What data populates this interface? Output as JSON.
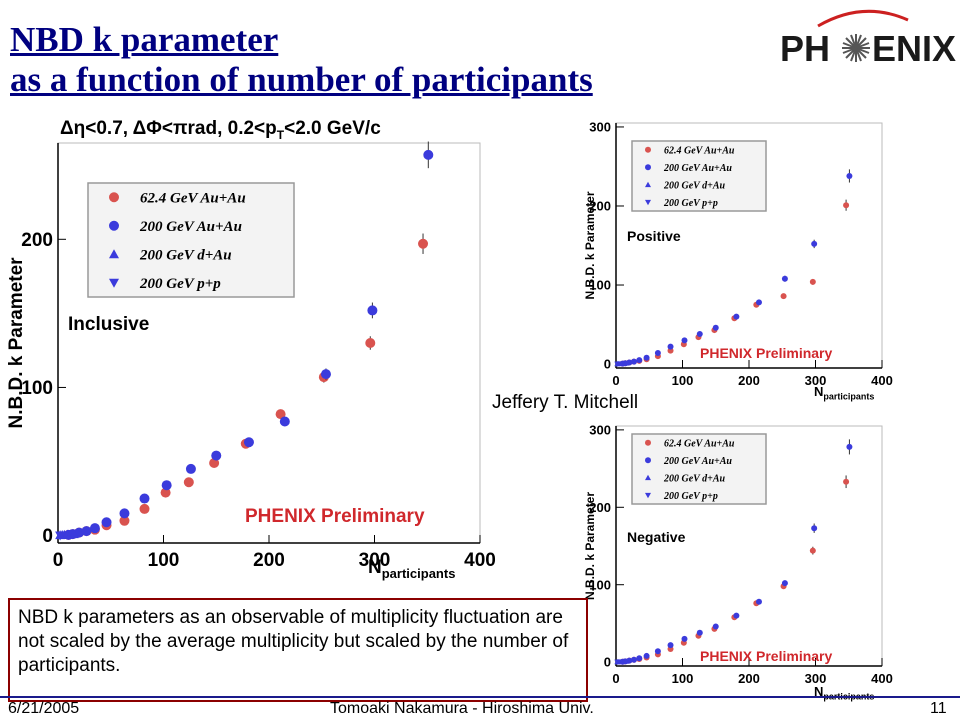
{
  "slide": {
    "title_line1": "NBD k parameter",
    "title_line2": "as a function of number of participants",
    "cuts": {
      "prefix": "Δη<0.7, ΔΦ<πrad, 0.2<p",
      "sub": "T",
      "suffix": "<2.0 GeV/c"
    },
    "logo_text_left": "PH",
    "logo_text_right": "ENIX",
    "author": "Jeffery T. Mitchell",
    "note": "NBD k parameters as an observable of multiplicity fluctuation are not scaled by the average multiplicity but scaled by the number of participants.",
    "footer": {
      "date": "6/21/2005",
      "presenter": "Tomoaki Nakamura - Hiroshima Univ.",
      "page": "11"
    }
  },
  "panels": {
    "main": {
      "label": "Inclusive",
      "prelim": "PHENIX Preliminary",
      "xlabel": "N",
      "xlabel_sub": "participants"
    },
    "positive": {
      "label": "Positive",
      "prelim": "PHENIX Preliminary",
      "xlabel": "N",
      "xlabel_sub": "participants"
    },
    "negative": {
      "label": "Negative",
      "prelim": "PHENIX Preliminary",
      "xlabel": "N",
      "xlabel_sub": "participants"
    }
  },
  "colors": {
    "title": "#000080",
    "auau624": "#d9534f",
    "auau200": "#3b3bdc",
    "prelim": "#d0282c",
    "border": "#8b0000"
  },
  "chart_data": [
    {
      "type": "scatter",
      "panel": "Inclusive",
      "xlabel": "N participants",
      "ylabel": "N.B.D. k Parameter",
      "xlim": [
        0,
        400
      ],
      "ylim": [
        -5,
        265
      ],
      "xticks": [
        "0",
        "100",
        "200",
        "300",
        "400"
      ],
      "yticks": [
        "0",
        "100",
        "200"
      ],
      "legend": [
        "62.4 GeV Au+Au",
        "200 GeV Au+Au",
        "200 GeV d+Au",
        "200 GeV p+p"
      ],
      "series": [
        {
          "name": "62.4 GeV Au+Au",
          "marker": "circle",
          "color": "#d9534f",
          "x": [
            10,
            14,
            20,
            27,
            35,
            46,
            63,
            82,
            102,
            124,
            148,
            178,
            211,
            252,
            296,
            346
          ],
          "y": [
            0.5,
            1,
            2,
            3,
            4,
            7,
            10,
            18,
            29,
            36,
            49,
            62,
            82,
            107,
            130,
            197
          ]
        },
        {
          "name": "200 GeV Au+Au",
          "marker": "circle",
          "color": "#3b3bdc",
          "x": [
            10,
            14,
            20,
            27,
            35,
            46,
            63,
            82,
            103,
            126,
            150,
            181,
            215,
            254,
            298,
            351
          ],
          "y": [
            0.5,
            1,
            2,
            3,
            5,
            9,
            15,
            25,
            34,
            45,
            54,
            63,
            77,
            109,
            152,
            257
          ]
        },
        {
          "name": "200 GeV d+Au",
          "marker": "triangle",
          "color": "#3b3bdc",
          "x": [
            2,
            4,
            6,
            9,
            12,
            15
          ],
          "y": [
            0.3,
            0.4,
            0.5,
            0.7,
            0.9,
            1.0
          ]
        },
        {
          "name": "200 GeV p+p",
          "marker": "triangle-down",
          "color": "#3b3bdc",
          "x": [
            2
          ],
          "y": [
            0.1
          ]
        }
      ]
    },
    {
      "type": "scatter",
      "panel": "Positive",
      "xlabel": "N participants",
      "ylabel": "N.B.D. k Parameter",
      "xlim": [
        0,
        400
      ],
      "ylim": [
        -5,
        305
      ],
      "xticks": [
        "0",
        "100",
        "200",
        "300",
        "400"
      ],
      "yticks": [
        "0",
        "100",
        "200",
        "300"
      ],
      "legend": [
        "62.4 GeV Au+Au",
        "200 GeV Au+Au",
        "200 GeV d+Au",
        "200 GeV p+p"
      ],
      "series": [
        {
          "name": "62.4 GeV Au+Au",
          "marker": "circle",
          "color": "#d9534f",
          "x": [
            10,
            14,
            20,
            27,
            35,
            46,
            63,
            82,
            102,
            124,
            148,
            178,
            211,
            252,
            296,
            346
          ],
          "y": [
            0.5,
            1,
            2,
            3,
            4,
            6,
            10,
            17,
            25,
            34,
            43,
            58,
            75,
            86,
            104,
            201
          ]
        },
        {
          "name": "200 GeV Au+Au",
          "marker": "circle",
          "color": "#3b3bdc",
          "x": [
            10,
            14,
            20,
            27,
            35,
            46,
            63,
            82,
            103,
            126,
            150,
            181,
            215,
            254,
            298,
            351
          ],
          "y": [
            0.5,
            1,
            2,
            3,
            5,
            8,
            14,
            22,
            30,
            38,
            46,
            60,
            78,
            108,
            152,
            238
          ]
        },
        {
          "name": "200 GeV d+Au",
          "marker": "triangle",
          "color": "#3b3bdc",
          "x": [
            2,
            4,
            6,
            9,
            12,
            15
          ],
          "y": [
            0.3,
            0.4,
            0.5,
            0.7,
            0.9,
            1.0
          ]
        },
        {
          "name": "200 GeV p+p",
          "marker": "triangle-down",
          "color": "#3b3bdc",
          "x": [
            2
          ],
          "y": [
            0.1
          ]
        }
      ]
    },
    {
      "type": "scatter",
      "panel": "Negative",
      "xlabel": "N participants",
      "ylabel": "N.B.D. k Parameter",
      "xlim": [
        0,
        400
      ],
      "ylim": [
        -5,
        305
      ],
      "xticks": [
        "0",
        "100",
        "200",
        "300",
        "400"
      ],
      "yticks": [
        "0",
        "100",
        "200",
        "300"
      ],
      "legend": [
        "62.4 GeV Au+Au",
        "200 GeV Au+Au",
        "200 GeV d+Au",
        "200 GeV p+p"
      ],
      "series": [
        {
          "name": "62.4 GeV Au+Au",
          "marker": "circle",
          "color": "#d9534f",
          "x": [
            10,
            14,
            20,
            27,
            35,
            46,
            63,
            82,
            102,
            124,
            148,
            178,
            211,
            252,
            296,
            346
          ],
          "y": [
            0.5,
            1,
            2,
            3,
            4,
            6,
            10,
            17,
            25,
            34,
            43,
            58,
            76,
            98,
            144,
            233
          ]
        },
        {
          "name": "200 GeV Au+Au",
          "marker": "circle",
          "color": "#3b3bdc",
          "x": [
            10,
            14,
            20,
            27,
            35,
            46,
            63,
            82,
            103,
            126,
            150,
            181,
            215,
            254,
            298,
            351
          ],
          "y": [
            0.5,
            1,
            2,
            3,
            5,
            8,
            14,
            22,
            30,
            38,
            46,
            60,
            78,
            102,
            173,
            278
          ]
        },
        {
          "name": "200 GeV d+Au",
          "marker": "triangle",
          "color": "#3b3bdc",
          "x": [
            2,
            4,
            6,
            9,
            12,
            15
          ],
          "y": [
            0.3,
            0.4,
            0.5,
            0.7,
            0.9,
            1.0
          ]
        },
        {
          "name": "200 GeV p+p",
          "marker": "triangle-down",
          "color": "#3b3bdc",
          "x": [
            2
          ],
          "y": [
            0.1
          ]
        }
      ]
    }
  ]
}
